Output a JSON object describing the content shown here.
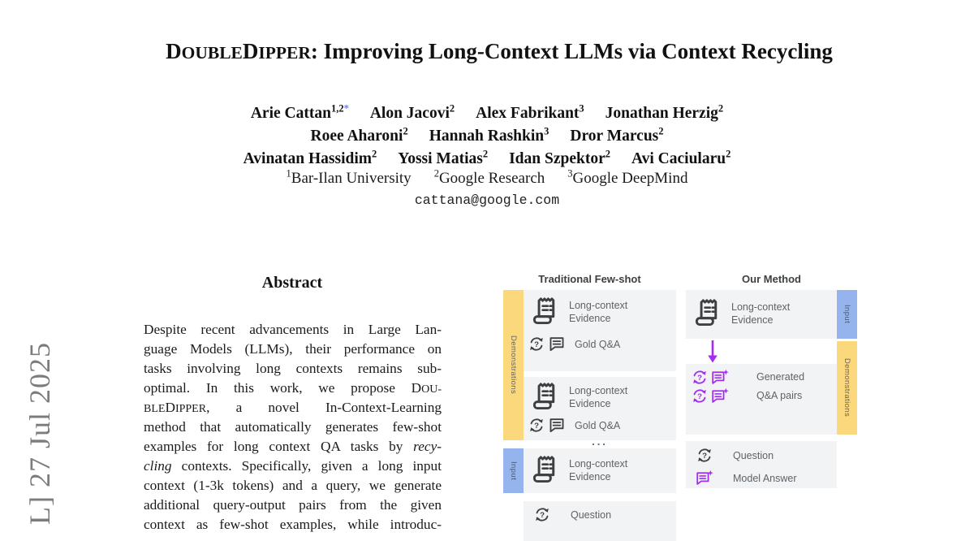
{
  "colors": {
    "purple": "#a32cf4",
    "yellow": "#fbd87c",
    "blue": "#95b4ee",
    "box_gray": "#f1f3f4",
    "icon_dark": "#3c4043",
    "label_gray": "#5f6368",
    "star": "#6b7fd7"
  },
  "paper": {
    "title_segments": [
      {
        "t": "D"
      },
      {
        "t": "OUBLE",
        "s": "sc"
      },
      {
        "t": "D"
      },
      {
        "t": "IPPER",
        "s": "sc"
      },
      {
        "t": ": Improving Long-Context LLMs via Context Recycling"
      }
    ],
    "author_lines": [
      [
        {
          "name": "Arie Cattan",
          "sup": "1,2",
          "star": "*"
        },
        {
          "name": "Alon Jacovi",
          "sup": "2"
        },
        {
          "name": "Alex Fabrikant",
          "sup": "3"
        },
        {
          "name": "Jonathan Herzig",
          "sup": "2"
        }
      ],
      [
        {
          "name": "Roee Aharoni",
          "sup": "2"
        },
        {
          "name": "Hannah Rashkin",
          "sup": "3"
        },
        {
          "name": "Dror Marcus",
          "sup": "2"
        }
      ],
      [
        {
          "name": "Avinatan Hassidim",
          "sup": "2"
        },
        {
          "name": "Yossi Matias",
          "sup": "2"
        },
        {
          "name": "Idan Szpektor",
          "sup": "2"
        },
        {
          "name": "Avi Caciularu",
          "sup": "2"
        }
      ]
    ],
    "affiliations": [
      {
        "sup": "1",
        "name": "Bar-Ilan University"
      },
      {
        "sup": "2",
        "name": "Google Research"
      },
      {
        "sup": "3",
        "name": "Google DeepMind"
      }
    ],
    "email": "cattana@google.com",
    "watermark": "L] 27 Jul 2025"
  },
  "abstract": {
    "heading": "Abstract",
    "lines": [
      [
        {
          "t": "Despite recent advancements in Large Lan-"
        }
      ],
      [
        {
          "t": "guage Models (LLMs), their performance on"
        }
      ],
      [
        {
          "t": "tasks involving long contexts remains sub-"
        }
      ],
      [
        {
          "t": "optimal.  In this work, we propose "
        },
        {
          "t": "D"
        },
        {
          "t": "OU-",
          "s": "sc"
        }
      ],
      [
        {
          "t": "BLE",
          "s": "sc"
        },
        {
          "t": "D"
        },
        {
          "t": "IPPER",
          "s": "sc"
        },
        {
          "t": ", a novel In-Context-Learning"
        }
      ],
      [
        {
          "t": "method that automatically generates few-shot"
        }
      ],
      [
        {
          "t": "examples for long context QA tasks by "
        },
        {
          "t": "recy-",
          "s": "it"
        }
      ],
      [
        {
          "t": "cling",
          "s": "it"
        },
        {
          "t": " contexts. Specifically, given a long input"
        }
      ],
      [
        {
          "t": "context (1-3k tokens) and a query, we generate"
        }
      ],
      [
        {
          "t": "additional query-output pairs from the given"
        }
      ],
      [
        {
          "t": "context as few-shot examples, while introduc-"
        }
      ]
    ]
  },
  "figure": {
    "left": {
      "header": "Traditional Few-shot",
      "demo_strip": "Demonstrations",
      "input_strip": "Input",
      "evidence_line1": "Long-context",
      "evidence_line2": "Evidence",
      "gold_qa": "Gold Q&A",
      "ellipsis": "...",
      "question": "Question"
    },
    "right": {
      "header": "Our Method",
      "input_strip": "Input",
      "demo_strip": "Demonstrations",
      "evidence_line1": "Long-context",
      "evidence_line2": "Evidence",
      "generated_line1": "Generated",
      "generated_line2": "Q&A pairs",
      "question": "Question",
      "model_answer": "Model Answer"
    }
  }
}
